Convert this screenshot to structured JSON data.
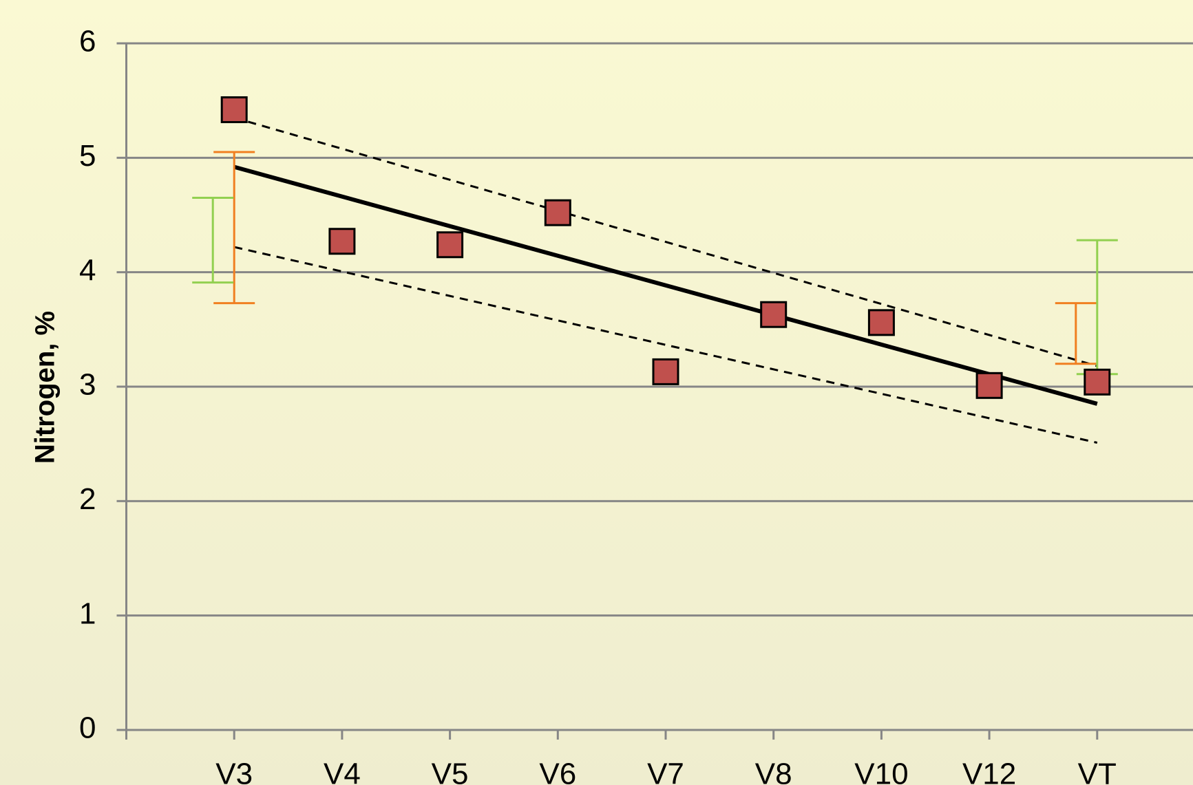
{
  "chart_data": {
    "type": "scatter",
    "y_label": "Nitrogen, %",
    "categories": [
      "V3",
      "V4",
      "V5",
      "V6",
      "V7",
      "V8",
      "V10",
      "V12",
      "VT"
    ],
    "series": [
      {
        "color": "#c0504d",
        "values": [
          5.42,
          4.27,
          4.24,
          4.52,
          3.13,
          3.63,
          3.56,
          3.01,
          3.04
        ]
      }
    ],
    "lines": [
      {
        "style": "solid",
        "color": "#000000",
        "values": [
          4.92,
          2.85
        ]
      },
      {
        "style": "dashed",
        "color": "#000000",
        "values": [
          5.35,
          3.18
        ]
      },
      {
        "style": "dashed",
        "color": "#000000",
        "values": [
          4.22,
          2.51
        ]
      }
    ],
    "error_bars": [
      {
        "category": 0,
        "side": "center",
        "color": "#f07f21",
        "low": 3.73,
        "high": 5.05
      },
      {
        "category": 0,
        "side": "left",
        "color": "#92d050",
        "low": 3.91,
        "high": 4.65
      },
      {
        "category": 8,
        "side": "left",
        "color": "#f07f21",
        "low": 3.2,
        "high": 3.73
      },
      {
        "category": 8,
        "side": "center",
        "color": "#92d050",
        "low": 3.11,
        "high": 4.28
      }
    ],
    "ylim": [
      0,
      6
    ],
    "yticks": [
      0,
      1,
      2,
      3,
      4,
      5,
      6
    ],
    "grid": true
  }
}
